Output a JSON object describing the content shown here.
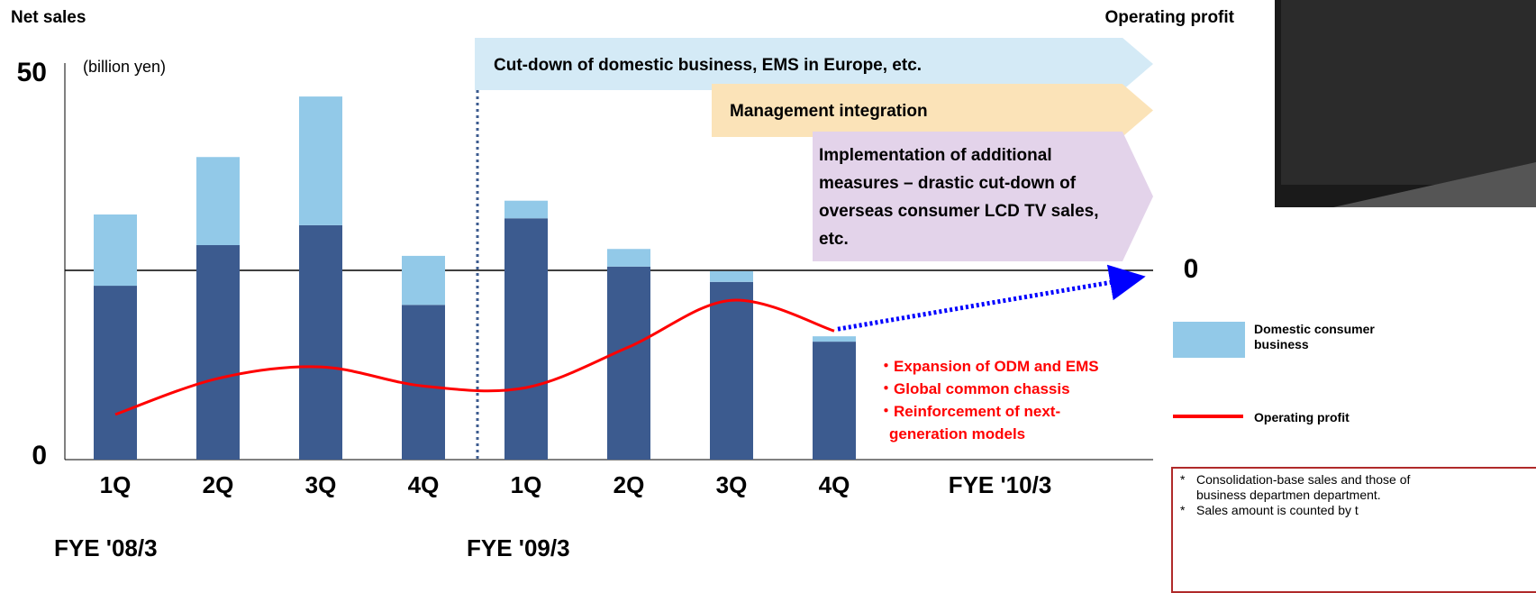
{
  "chart_data": {
    "type": "bar",
    "y_label": "Net sales",
    "unit_label": "(billion yen)",
    "y2_label": "Operating profit",
    "categories": [
      "1Q",
      "2Q",
      "3Q",
      "4Q",
      "1Q",
      "2Q",
      "3Q",
      "4Q",
      "FYE '10/3"
    ],
    "group_labels": [
      "FYE '08/3",
      "FYE '09/3"
    ],
    "series": [
      {
        "color": "#3c5b8f",
        "values": [
          22.7,
          28.0,
          30.6,
          20.2,
          31.5,
          25.2,
          23.2,
          15.4,
          null
        ]
      },
      {
        "name": "Domestic consumer business",
        "color": "#92c9e8",
        "values": [
          9.3,
          11.5,
          16.8,
          6.4,
          2.3,
          2.3,
          1.4,
          0.7,
          null
        ]
      },
      {
        "name": "Operating profit",
        "type": "line",
        "axis": "y2",
        "color": "#ff0000",
        "values": [
          -18.8,
          -14.1,
          -12.6,
          -15.1,
          -15.3,
          -10.0,
          -3.9,
          -7.9,
          null
        ]
      }
    ],
    "ylim": [
      0,
      50
    ],
    "yticks": [
      0,
      50
    ],
    "y2lim": [
      -24.7,
      25.3
    ],
    "y2ticks": [
      0
    ],
    "banners": [
      "Cut-down of domestic business, EMS in Europe, etc.",
      "Management integration",
      "Implementation of additional measures – drastic cut-down of overseas consumer LCD TV sales, etc."
    ],
    "measures": [
      "・Expansion of ODM and EMS",
      "・Global common chassis",
      "・Reinforcement of next-generation models"
    ],
    "notes": [
      "Consolidation-base sales and those of business departmen department.",
      "Sales amount is counted by t"
    ]
  }
}
